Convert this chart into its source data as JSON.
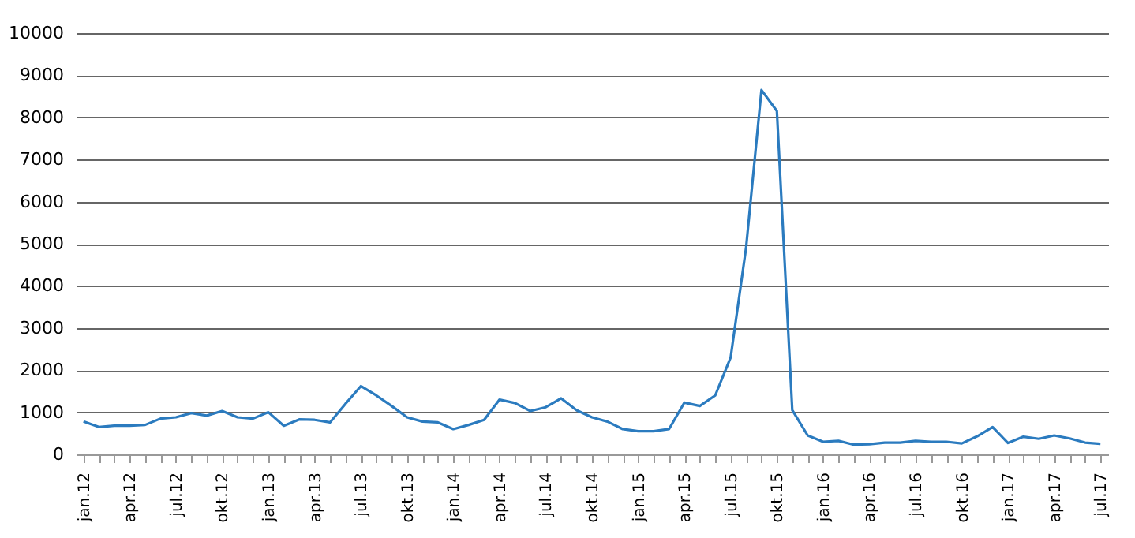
{
  "chart_data": {
    "type": "line",
    "categories": [
      "jan.12",
      null,
      null,
      "apr.12",
      null,
      null,
      "jul.12",
      null,
      null,
      "okt.12",
      null,
      null,
      "jan.13",
      null,
      null,
      "apr.13",
      null,
      null,
      "jul.13",
      null,
      null,
      "okt.13",
      null,
      null,
      "jan.14",
      null,
      null,
      "apr.14",
      null,
      null,
      "jul.14",
      null,
      null,
      "okt.14",
      null,
      null,
      "jan.15",
      null,
      null,
      "apr.15",
      null,
      null,
      "jul.15",
      null,
      null,
      "okt.15",
      null,
      null,
      "jan.16",
      null,
      null,
      "apr.16",
      null,
      null,
      "jul.16",
      null,
      null,
      "okt.16",
      null,
      null,
      "jan.17",
      null,
      null,
      "apr.17",
      null,
      null,
      "jul.17"
    ],
    "series": [
      {
        "color": "#2b7bbf",
        "values": [
          780,
          650,
          680,
          680,
          700,
          850,
          880,
          980,
          920,
          1030,
          880,
          850,
          1000,
          680,
          830,
          820,
          760,
          1200,
          1620,
          1400,
          1150,
          880,
          780,
          760,
          600,
          700,
          820,
          1300,
          1220,
          1030,
          1120,
          1330,
          1050,
          880,
          780,
          600,
          550,
          550,
          600,
          1230,
          1150,
          1400,
          2300,
          4900,
          8650,
          8150,
          1050,
          450,
          300,
          320,
          230,
          240,
          280,
          280,
          320,
          300,
          300,
          260,
          430,
          650,
          270,
          420,
          370,
          450,
          380,
          280,
          250
        ]
      }
    ],
    "ylim": [
      0,
      10000
    ],
    "yticks": [
      0,
      1000,
      2000,
      3000,
      4000,
      5000,
      6000,
      7000,
      8000,
      9000,
      10000
    ],
    "grid": "y"
  }
}
